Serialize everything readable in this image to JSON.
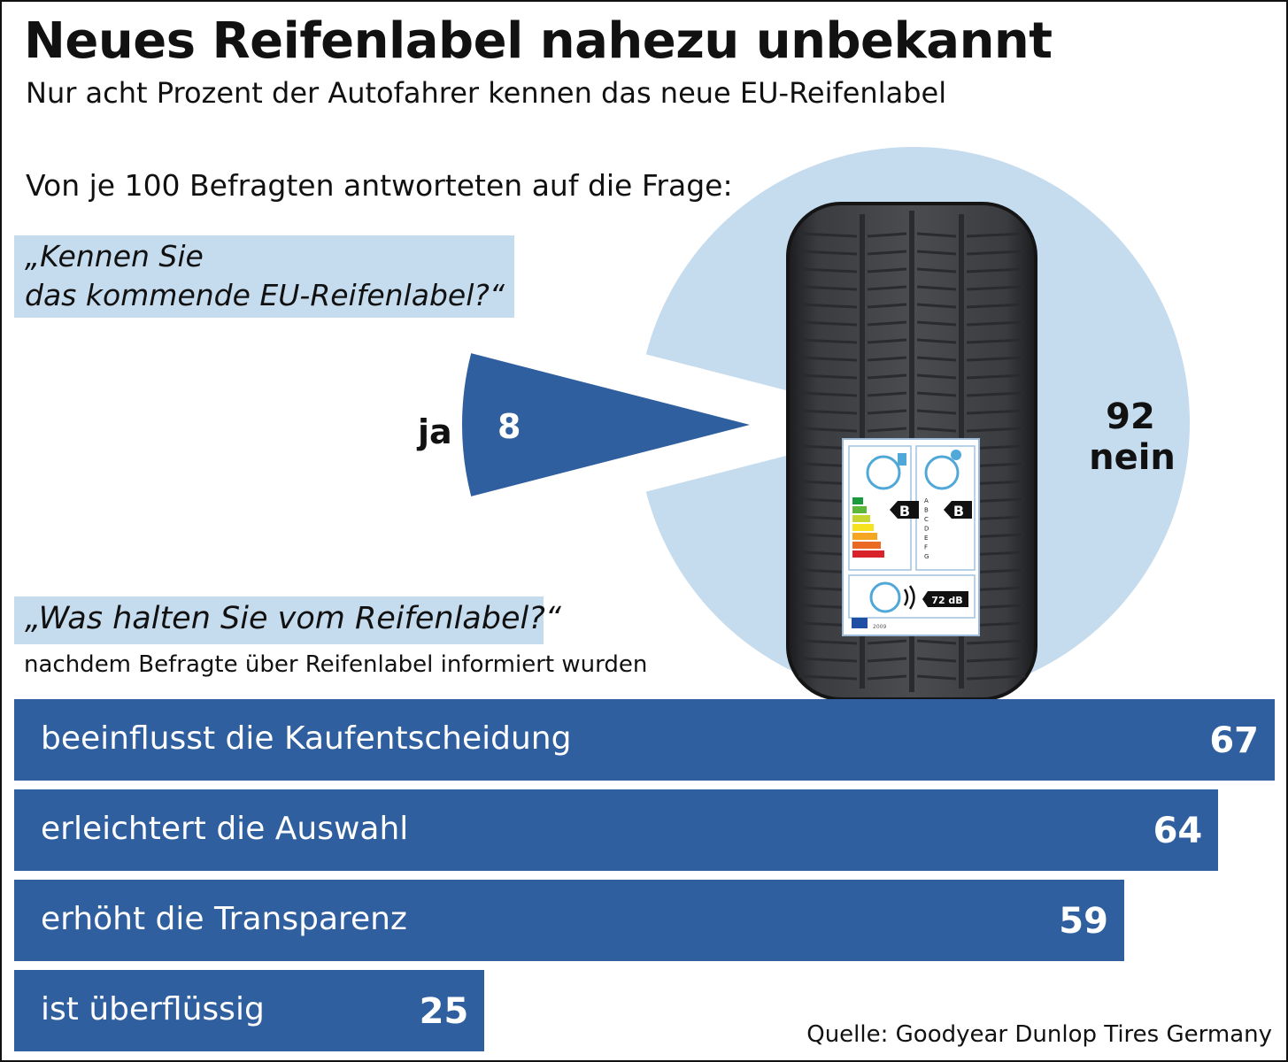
{
  "header": {
    "title": "Neues Reifenlabel nahezu unbekannt",
    "subtitle": "Nur acht Prozent der Autofahrer kennen das neue EU-Reifenlabel",
    "intro": "Von je 100 Befragten antworteten auf die Frage:"
  },
  "question1": {
    "line1": "„Kennen Sie",
    "line2": "das kommende EU-Reifenlabel?“"
  },
  "question2": {
    "text": "„Was halten Sie vom Reifenlabel?“",
    "note": "nachdem Befragte über Reifenlabel informiert wurden"
  },
  "tyre_label": {
    "grade_fuel": "B",
    "grade_wet": "B",
    "classes": [
      "A",
      "B",
      "C",
      "D",
      "E",
      "F",
      "G"
    ],
    "noise": "72 dB",
    "year": "2009"
  },
  "source": "Quelle: Goodyear Dunlop Tires Germany",
  "colors": {
    "dark_blue": "#2f5f9e",
    "light_blue": "#c5dbee",
    "text": "#111111"
  },
  "chart_data": [
    {
      "type": "pie",
      "slices": [
        {
          "label": "ja",
          "value": 8,
          "color": "#2f5f9e"
        },
        {
          "label": "nein",
          "value": 92,
          "color": "#c5dbee"
        }
      ]
    },
    {
      "type": "bar",
      "orientation": "horizontal",
      "categories": [
        "beeinflusst die Kaufentscheidung",
        "erleichtert die Auswahl",
        "erhöht die Transparenz",
        "ist überflüssig"
      ],
      "values": [
        67,
        64,
        59,
        25
      ]
    }
  ]
}
